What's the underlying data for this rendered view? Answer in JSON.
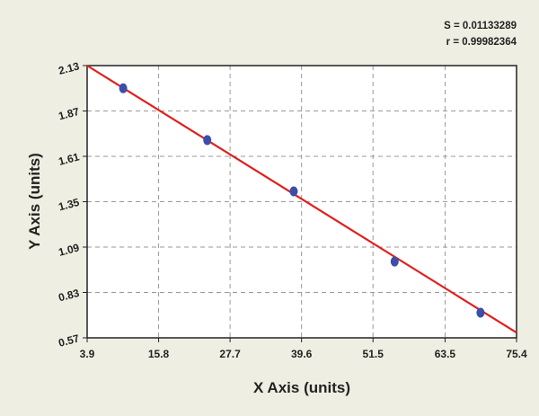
{
  "chart_data": {
    "type": "scatter",
    "annotations": [
      "S = 0.01133289",
      "r = 0.99982364"
    ],
    "x_label": "X Axis (units)",
    "y_label": "Y Axis (units)",
    "series": [
      {
        "color": "#3a4fa8",
        "x": [
          9.9,
          23.9,
          38.3,
          55.1,
          69.4
        ],
        "values": [
          2.0,
          1.703,
          1.409,
          1.007,
          0.714
        ]
      }
    ],
    "fit_line": {
      "color": "#e02020",
      "x": [
        3.9,
        75.4
      ],
      "values": [
        2.13,
        0.6
      ]
    },
    "xlim": [
      3.9,
      75.4
    ],
    "xticks": [
      3.9,
      15.8,
      27.7,
      39.6,
      51.5,
      63.5,
      75.4
    ],
    "ylim": [
      0.57,
      2.13
    ],
    "yticks": [
      0.57,
      0.83,
      1.09,
      1.35,
      1.61,
      1.87,
      2.13
    ],
    "grid": true
  }
}
